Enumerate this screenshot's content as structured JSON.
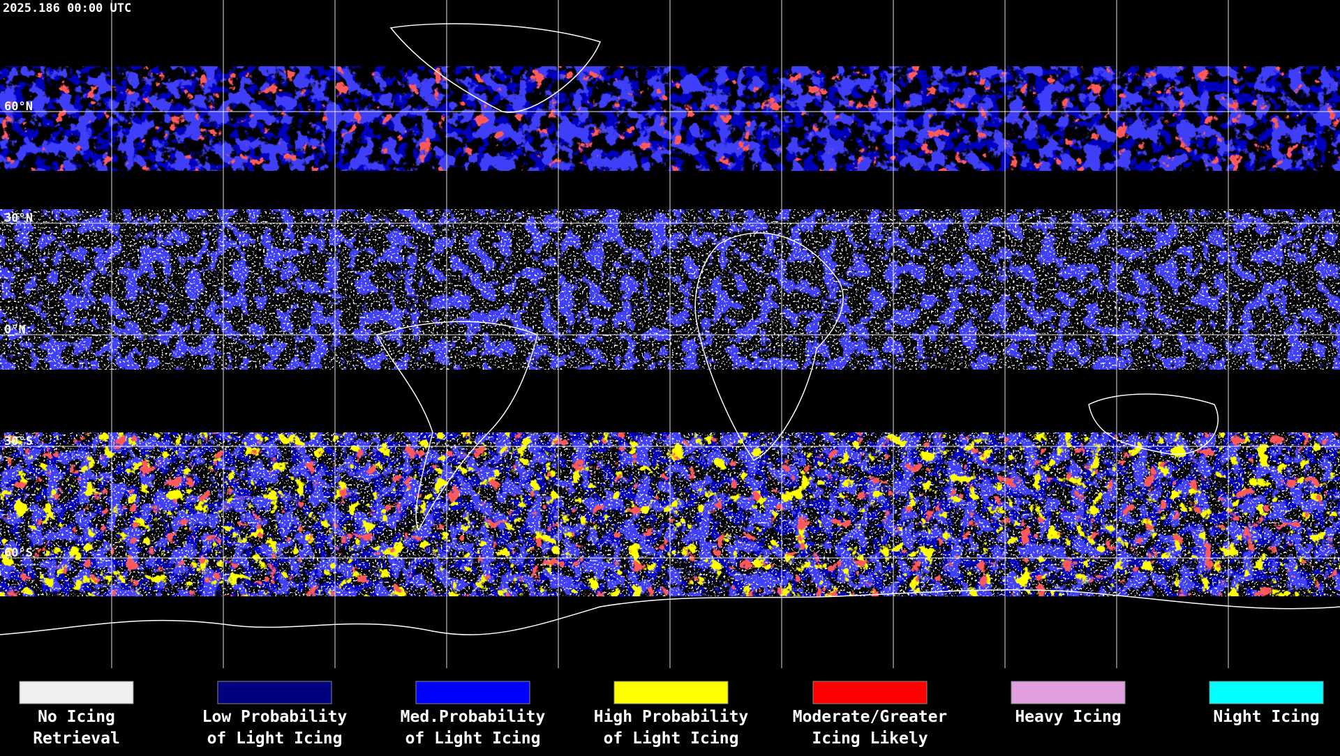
{
  "header": {
    "timestamp": "2025.186 00:00 UTC"
  },
  "lat_labels": [
    "60°N",
    "30°N",
    "0°N",
    "30°S",
    "60°S"
  ],
  "legend": [
    {
      "lines": [
        "No Icing",
        "Retrieval"
      ],
      "color": "#f0f0f0"
    },
    {
      "lines": [
        "Low Probability",
        "of Light Icing"
      ],
      "color": "#000080"
    },
    {
      "lines": [
        "Med.Probability",
        "of Light Icing"
      ],
      "color": "#0000ff"
    },
    {
      "lines": [
        "High Probability",
        "of Light Icing"
      ],
      "color": "#ffff00"
    },
    {
      "lines": [
        "Moderate/Greater",
        "Icing Likely"
      ],
      "color": "#ff0000"
    },
    {
      "lines": [
        "Heavy Icing"
      ],
      "color": "#e0a0e0"
    },
    {
      "lines": [
        "Night Icing"
      ],
      "color": "#00ffff"
    }
  ]
}
